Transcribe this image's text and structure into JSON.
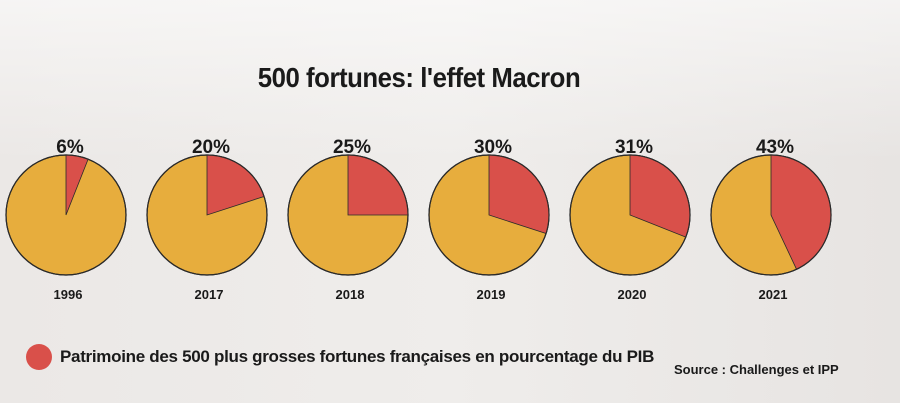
{
  "chart_data": {
    "type": "pie",
    "title": "500 fortunes: l'effet Macron",
    "series_name": "Patrimoine des 500 plus grosses fortunes françaises en pourcentage du PIB",
    "categories": [
      "1996",
      "2017",
      "2018",
      "2019",
      "2020",
      "2021"
    ],
    "values": [
      6,
      20,
      25,
      30,
      31,
      43
    ],
    "value_labels": [
      "6%",
      "20%",
      "25%",
      "30%",
      "31%",
      "43%"
    ],
    "unit": "%",
    "source": "Source : Challenges et IPP",
    "legend_position": "bottom-left"
  },
  "colors": {
    "fortune": "#d9504a",
    "rest": "#e7ad3d",
    "outline": "#2a2a2a"
  }
}
